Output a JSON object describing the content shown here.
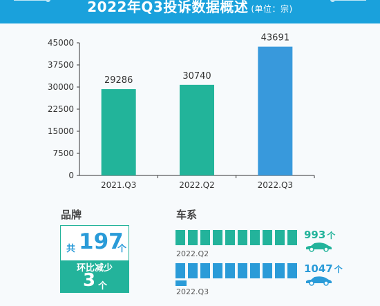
{
  "header": {
    "title": "2022年Q3投诉数据概述",
    "unit": "(单位：宗)",
    "bg_color": "#1aa1dc"
  },
  "chart_data": {
    "type": "bar",
    "title": "2022年Q3投诉数据概述",
    "unit": "宗",
    "categories": [
      "2021.Q3",
      "2022.Q2",
      "2022.Q3"
    ],
    "values": [
      29286,
      30740,
      43691
    ],
    "data_labels": [
      "29286",
      "30740",
      "43691"
    ],
    "bar_colors": [
      "#22b49a",
      "#22b49a",
      "#3899dc"
    ],
    "ylim": [
      0,
      45000
    ],
    "y_ticks": [
      0,
      7500,
      15000,
      22500,
      30000,
      37500,
      45000
    ],
    "grid": false,
    "legend": "none"
  },
  "brand": {
    "title": "品牌",
    "total_prefix": "共",
    "total": "197",
    "total_unit": "个",
    "change_label": "环比减少",
    "change_value": "3",
    "change_unit": "个"
  },
  "series": {
    "title": "车系",
    "rows": [
      {
        "label": "2022.Q2",
        "value": "993",
        "unit": "个",
        "color": "#23b39b"
      },
      {
        "label": "2022.Q3",
        "value": "1047",
        "unit": "个",
        "color": "#2a9bd8"
      }
    ]
  },
  "icons": {
    "car": "car-icon"
  }
}
